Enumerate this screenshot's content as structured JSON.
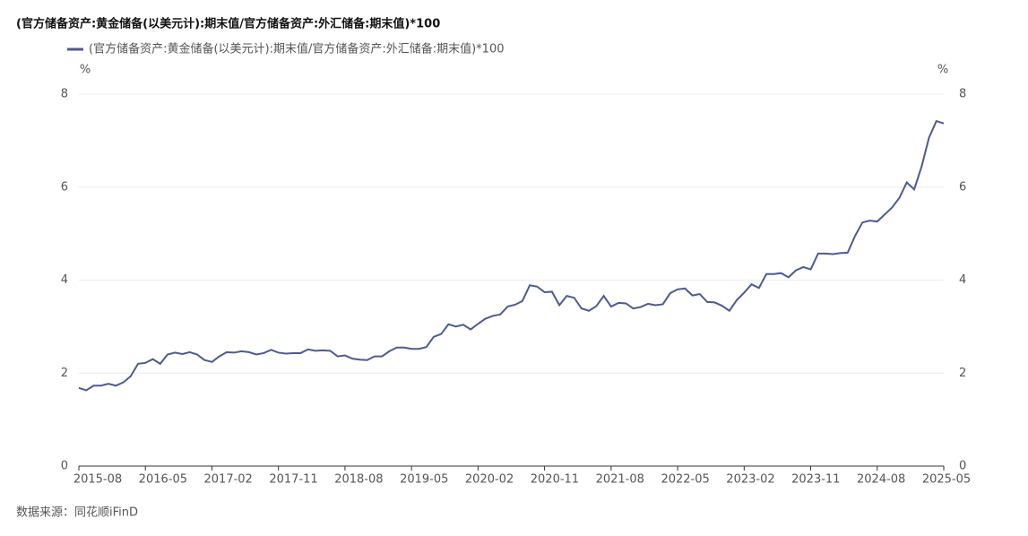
{
  "chart_data": {
    "type": "line",
    "title": "(官方储备资产:黄金储备(以美元计):期末值/官方储备资产:外汇储备:期末值)*100",
    "source": "数据来源：同花顺iFinD",
    "y_unit": "%",
    "y2_unit": "%",
    "categories": [
      "2015-08",
      null,
      null,
      null,
      null,
      null,
      null,
      null,
      null,
      "2016-05",
      null,
      null,
      null,
      null,
      null,
      null,
      null,
      null,
      "2017-02",
      null,
      null,
      null,
      null,
      null,
      null,
      null,
      null,
      "2017-11",
      null,
      null,
      null,
      null,
      null,
      null,
      null,
      null,
      "2018-08",
      null,
      null,
      null,
      null,
      null,
      null,
      null,
      null,
      "2019-05",
      null,
      null,
      null,
      null,
      null,
      null,
      null,
      null,
      "2020-02",
      null,
      null,
      null,
      null,
      null,
      null,
      null,
      null,
      "2020-11",
      null,
      null,
      null,
      null,
      null,
      null,
      null,
      null,
      "2021-08",
      null,
      null,
      null,
      null,
      null,
      null,
      null,
      null,
      "2022-05",
      null,
      null,
      null,
      null,
      null,
      null,
      null,
      null,
      "2023-02",
      null,
      null,
      null,
      null,
      null,
      null,
      null,
      null,
      "2023-11",
      null,
      null,
      null,
      null,
      null,
      null,
      null,
      null,
      "2024-08",
      null,
      null,
      null,
      null,
      null,
      null,
      null,
      null,
      "2025-05"
    ],
    "series": [
      {
        "name": "(官方储备资产:黄金储备(以美元计):期末值/官方储备资产:外汇储备:期末值)*100",
        "color": "#4e5a92",
        "values": [
          1.68,
          1.63,
          1.73,
          1.73,
          1.77,
          1.73,
          1.8,
          1.93,
          2.2,
          2.22,
          2.3,
          2.2,
          2.4,
          2.44,
          2.41,
          2.45,
          2.4,
          2.28,
          2.24,
          2.36,
          2.45,
          2.44,
          2.47,
          2.45,
          2.4,
          2.43,
          2.5,
          2.44,
          2.42,
          2.43,
          2.43,
          2.51,
          2.48,
          2.49,
          2.48,
          2.36,
          2.38,
          2.31,
          2.29,
          2.28,
          2.36,
          2.36,
          2.47,
          2.55,
          2.55,
          2.52,
          2.52,
          2.56,
          2.78,
          2.84,
          3.05,
          3.0,
          3.04,
          2.94,
          3.06,
          3.17,
          3.23,
          3.26,
          3.43,
          3.47,
          3.55,
          3.89,
          3.86,
          3.74,
          3.75,
          3.46,
          3.66,
          3.62,
          3.39,
          3.34,
          3.44,
          3.66,
          3.43,
          3.51,
          3.5,
          3.39,
          3.42,
          3.49,
          3.46,
          3.48,
          3.72,
          3.8,
          3.82,
          3.67,
          3.7,
          3.53,
          3.52,
          3.45,
          3.34,
          3.57,
          3.73,
          3.91,
          3.83,
          4.13,
          4.13,
          4.15,
          4.06,
          4.21,
          4.28,
          4.23,
          4.57,
          4.57,
          4.56,
          4.58,
          4.59,
          4.95,
          5.24,
          5.28,
          5.26,
          5.41,
          5.56,
          5.77,
          6.1,
          5.95,
          6.44,
          7.06,
          7.42,
          7.37
        ]
      }
    ],
    "ylim": [
      0,
      8
    ],
    "yticks": [
      0,
      2,
      4,
      6,
      8
    ],
    "y2lim": [
      0,
      8
    ],
    "y2ticks": [
      0,
      2,
      4,
      6,
      8
    ],
    "grid": true
  }
}
